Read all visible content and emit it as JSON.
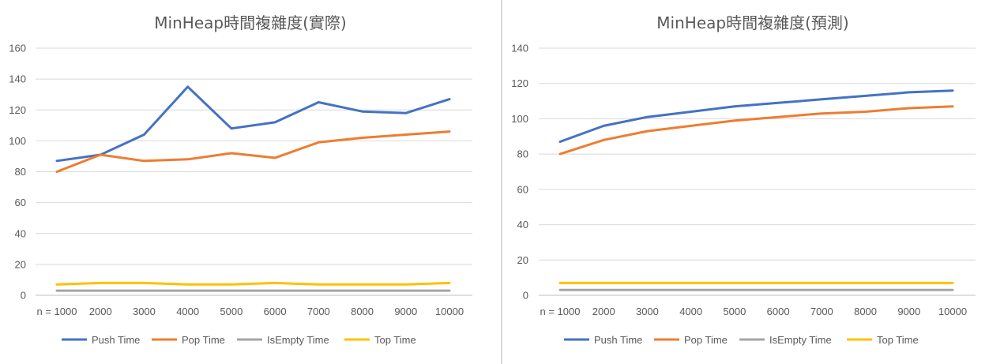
{
  "chart_data": [
    {
      "type": "line",
      "title": "MinHeap時間複雜度(實際)",
      "categories": [
        "n = 1000",
        "2000",
        "3000",
        "4000",
        "5000",
        "6000",
        "7000",
        "8000",
        "9000",
        "10000"
      ],
      "ylim": [
        0,
        160
      ],
      "yticks": [
        0,
        20,
        40,
        60,
        80,
        100,
        120,
        140,
        160
      ],
      "grid": true,
      "legend_position": "bottom",
      "series": [
        {
          "name": "Push Time",
          "color": "#4472c4",
          "values": [
            87,
            91,
            104,
            135,
            108,
            112,
            125,
            119,
            118,
            127
          ]
        },
        {
          "name": "Pop Time",
          "color": "#ed7d31",
          "values": [
            80,
            91,
            87,
            88,
            92,
            89,
            99,
            102,
            104,
            106
          ]
        },
        {
          "name": "IsEmpty Time",
          "color": "#a5a5a5",
          "values": [
            3,
            3,
            3,
            3,
            3,
            3,
            3,
            3,
            3,
            3
          ]
        },
        {
          "name": "Top Time",
          "color": "#ffc000",
          "values": [
            7,
            8,
            8,
            7,
            7,
            8,
            7,
            7,
            7,
            8
          ]
        }
      ]
    },
    {
      "type": "line",
      "title": "MinHeap時間複雜度(預測)",
      "categories": [
        "n = 1000",
        "2000",
        "3000",
        "4000",
        "5000",
        "6000",
        "7000",
        "8000",
        "9000",
        "10000"
      ],
      "ylim": [
        0,
        140
      ],
      "yticks": [
        0,
        20,
        40,
        60,
        80,
        100,
        120,
        140
      ],
      "grid": true,
      "legend_position": "bottom",
      "series": [
        {
          "name": "Push Time",
          "color": "#4472c4",
          "values": [
            87,
            96,
            101,
            104,
            107,
            109,
            111,
            113,
            115,
            116
          ]
        },
        {
          "name": "Pop Time",
          "color": "#ed7d31",
          "values": [
            80,
            88,
            93,
            96,
            99,
            101,
            103,
            104,
            106,
            107
          ]
        },
        {
          "name": "IsEmpty Time",
          "color": "#a5a5a5",
          "values": [
            3,
            3,
            3,
            3,
            3,
            3,
            3,
            3,
            3,
            3
          ]
        },
        {
          "name": "Top Time",
          "color": "#ffc000",
          "values": [
            7,
            7,
            7,
            7,
            7,
            7,
            7,
            7,
            7,
            7
          ]
        }
      ]
    }
  ]
}
